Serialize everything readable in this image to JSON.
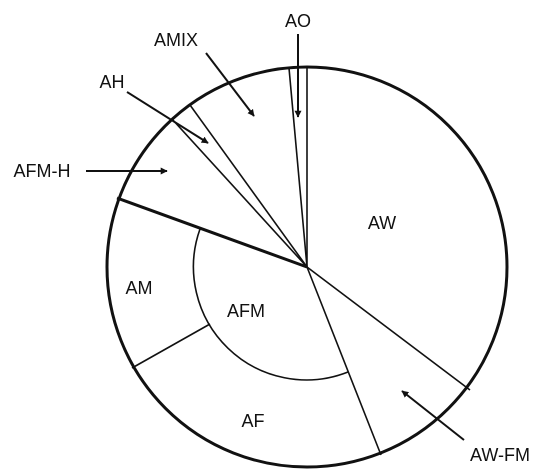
{
  "diagram": {
    "colors": {
      "line": "#111111",
      "background": "#ffffff"
    },
    "region_labels": {
      "aw": "AW",
      "am": "AM",
      "afm": "AFM",
      "af": "AF"
    },
    "callout_labels": {
      "ao": "AO",
      "amix": "AMIX",
      "ah": "AH",
      "afm_h": "AFM-H",
      "aw_fm": "AW-FM"
    }
  }
}
